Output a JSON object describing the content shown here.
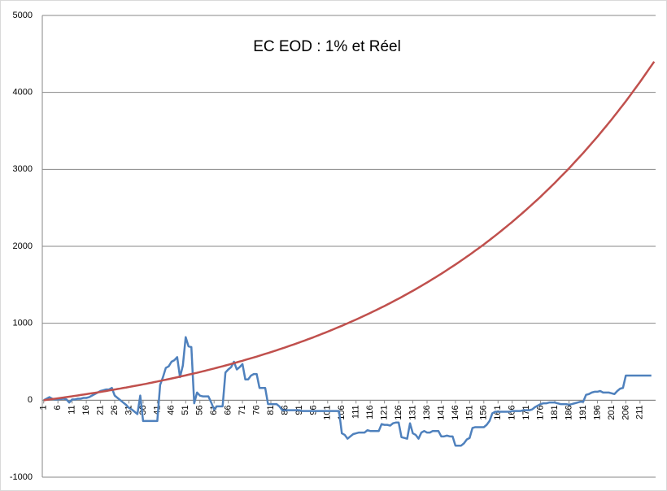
{
  "chart_data": {
    "type": "line",
    "title": "EC EOD : 1% et Réel",
    "categories": [
      1,
      null,
      null,
      null,
      null,
      6,
      null,
      null,
      null,
      null,
      11,
      null,
      null,
      null,
      null,
      16,
      null,
      null,
      null,
      null,
      21,
      null,
      null,
      null,
      null,
      26,
      null,
      null,
      null,
      null,
      31,
      null,
      null,
      null,
      null,
      36,
      null,
      null,
      null,
      null,
      41,
      null,
      null,
      null,
      null,
      46,
      null,
      null,
      null,
      null,
      51,
      null,
      null,
      null,
      null,
      56,
      null,
      null,
      null,
      null,
      61,
      null,
      null,
      null,
      null,
      66,
      null,
      null,
      null,
      null,
      71,
      null,
      null,
      null,
      null,
      76,
      null,
      null,
      null,
      null,
      81,
      null,
      null,
      null,
      null,
      86,
      null,
      null,
      null,
      null,
      91,
      null,
      null,
      null,
      null,
      96,
      null,
      null,
      null,
      null,
      101,
      null,
      null,
      null,
      null,
      106,
      null,
      null,
      null,
      null,
      111,
      null,
      null,
      null,
      null,
      116,
      null,
      null,
      null,
      null,
      121,
      null,
      null,
      null,
      null,
      126,
      null,
      null,
      null,
      null,
      131,
      null,
      null,
      null,
      null,
      136,
      null,
      null,
      null,
      null,
      141,
      null,
      null,
      null,
      null,
      146,
      null,
      null,
      null,
      null,
      151,
      null,
      null,
      null,
      null,
      156,
      null,
      null,
      null,
      null,
      161,
      null,
      null,
      null,
      null,
      166,
      null,
      null,
      null,
      null,
      171,
      null,
      null,
      null,
      null,
      176,
      null,
      null,
      null,
      null,
      181,
      null,
      null,
      null,
      null,
      186,
      null,
      null,
      null,
      null,
      191,
      null,
      null,
      null,
      null,
      196,
      null,
      null,
      null,
      null,
      201,
      null,
      null,
      null,
      null,
      206,
      null,
      null,
      null,
      null,
      211,
      null,
      null,
      null,
      null,
      null
    ],
    "series": [
      {
        "color": "#4f81bd",
        "values": [
          0,
          20,
          40,
          20,
          10,
          10,
          15,
          20,
          10,
          -30,
          10,
          10,
          20,
          20,
          30,
          30,
          40,
          60,
          80,
          100,
          120,
          130,
          140,
          140,
          160,
          60,
          30,
          0,
          -30,
          -60,
          -100,
          -120,
          -150,
          -180,
          60,
          -270,
          -270,
          -270,
          -270,
          -270,
          -270,
          200,
          300,
          420,
          440,
          500,
          520,
          560,
          300,
          450,
          820,
          700,
          690,
          -40,
          100,
          60,
          50,
          50,
          50,
          -30,
          -120,
          -80,
          -80,
          -80,
          360,
          400,
          430,
          500,
          400,
          430,
          470,
          270,
          270,
          320,
          340,
          340,
          160,
          160,
          160,
          -50,
          -50,
          -50,
          -50,
          -80,
          -130,
          -130,
          -130,
          -130,
          -130,
          -130,
          -130,
          -140,
          -140,
          -140,
          -140,
          -140,
          -140,
          -140,
          -140,
          -140,
          -140,
          -140,
          -140,
          -140,
          -140,
          -430,
          -450,
          -500,
          -470,
          -440,
          -430,
          -420,
          -420,
          -420,
          -390,
          -400,
          -400,
          -400,
          -400,
          -310,
          -320,
          -320,
          -330,
          -300,
          -290,
          -290,
          -480,
          -490,
          -500,
          -300,
          -430,
          -450,
          -500,
          -420,
          -400,
          -420,
          -420,
          -400,
          -400,
          -400,
          -470,
          -470,
          -460,
          -470,
          -470,
          -590,
          -590,
          -590,
          -560,
          -510,
          -490,
          -360,
          -350,
          -350,
          -350,
          -350,
          -320,
          -270,
          -170,
          -150,
          -150,
          -150,
          -150,
          -150,
          -150,
          -140,
          -140,
          -140,
          -140,
          -130,
          -130,
          -130,
          -120,
          -90,
          -70,
          -50,
          -40,
          -40,
          -30,
          -30,
          -30,
          -40,
          -50,
          -50,
          -50,
          -60,
          -50,
          -40,
          -30,
          -20,
          -20,
          70,
          80,
          100,
          110,
          110,
          120,
          100,
          100,
          100,
          90,
          80,
          120,
          150,
          160,
          320,
          320,
          320,
          320,
          320,
          320,
          320,
          320,
          320,
          320,
          null
        ]
      },
      {
        "color": "#c0504d",
        "values": [
          0,
          5,
          10,
          15,
          20,
          25,
          30,
          35,
          41,
          46,
          51,
          57,
          62,
          68,
          73,
          79,
          85,
          91,
          96,
          102,
          108,
          114,
          120,
          127,
          133,
          139,
          146,
          152,
          159,
          165,
          172,
          179,
          186,
          192,
          199,
          206,
          213,
          221,
          228,
          236,
          243,
          251,
          259,
          266,
          274,
          282,
          290,
          298,
          307,
          315,
          323,
          332,
          340,
          349,
          357,
          366,
          375,
          384,
          394,
          403,
          412,
          422,
          432,
          441,
          451,
          461,
          471,
          482,
          492,
          503,
          513,
          524,
          535,
          546,
          556,
          567,
          579,
          590,
          602,
          613,
          625,
          637,
          649,
          662,
          674,
          686,
          699,
          712,
          724,
          737,
          750,
          764,
          777,
          791,
          804,
          818,
          833,
          847,
          862,
          876,
          891,
          906,
          921,
          937,
          952,
          967,
          983,
          999,
          1016,
          1032,
          1048,
          1065,
          1082,
          1100,
          1117,
          1134,
          1152,
          1170,
          1188,
          1206,
          1224,
          1243,
          1262,
          1282,
          1301,
          1320,
          1340,
          1361,
          1381,
          1402,
          1422,
          1443,
          1465,
          1486,
          1508,
          1529,
          1552,
          1575,
          1597,
          1620,
          1643,
          1667,
          1691,
          1715,
          1739,
          1763,
          1788,
          1814,
          1839,
          1865,
          1890,
          1917,
          1944,
          1970,
          1997,
          2024,
          2053,
          2081,
          2110,
          2138,
          2167,
          2197,
          2227,
          2257,
          2287,
          2317,
          2349,
          2381,
          2413,
          2445,
          2477,
          2511,
          2544,
          2578,
          2611,
          2645,
          2681,
          2717,
          2752,
          2788,
          2824,
          2862,
          2900,
          2937,
          2975,
          3013,
          3053,
          3093,
          3133,
          3173,
          3213,
          3255,
          3297,
          3340,
          3382,
          3424,
          3469,
          3514,
          3558,
          3603,
          3648,
          3695,
          3742,
          3790,
          3837,
          3884,
          3934,
          3984,
          4035,
          4085,
          4135,
          4188,
          4241,
          4294,
          4347,
          4400
        ]
      }
    ],
    "ylim": [
      -1000,
      5000
    ],
    "yticks": [
      -1000,
      0,
      1000,
      2000,
      3000,
      4000,
      5000
    ],
    "grid": true
  }
}
